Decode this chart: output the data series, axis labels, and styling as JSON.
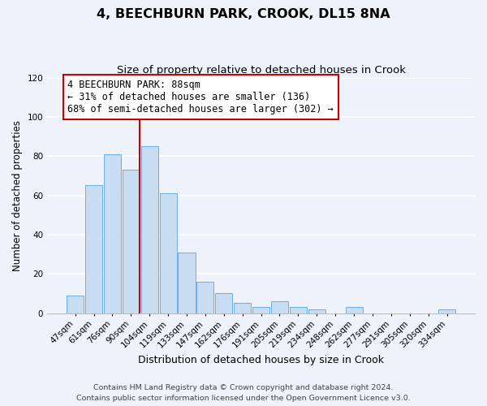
{
  "title": "4, BEECHBURN PARK, CROOK, DL15 8NA",
  "subtitle": "Size of property relative to detached houses in Crook",
  "xlabel": "Distribution of detached houses by size in Crook",
  "ylabel": "Number of detached properties",
  "bin_labels": [
    "47sqm",
    "61sqm",
    "76sqm",
    "90sqm",
    "104sqm",
    "119sqm",
    "133sqm",
    "147sqm",
    "162sqm",
    "176sqm",
    "191sqm",
    "205sqm",
    "219sqm",
    "234sqm",
    "248sqm",
    "262sqm",
    "277sqm",
    "291sqm",
    "305sqm",
    "320sqm",
    "334sqm"
  ],
  "bin_values": [
    9,
    65,
    81,
    73,
    85,
    61,
    31,
    16,
    10,
    5,
    3,
    6,
    3,
    2,
    0,
    3,
    0,
    0,
    0,
    0,
    2
  ],
  "bar_color": "#c9ddf2",
  "bar_edge_color": "#6aaee8",
  "vline_color": "#cc0000",
  "vline_x_index": 3,
  "annotation_text": "4 BEECHBURN PARK: 88sqm\n← 31% of detached houses are smaller (136)\n68% of semi-detached houses are larger (302) →",
  "annotation_box_facecolor": "white",
  "annotation_box_edgecolor": "#cc0000",
  "ylim": [
    0,
    120
  ],
  "yticks": [
    0,
    20,
    40,
    60,
    80,
    100,
    120
  ],
  "background_color": "#eef2fa",
  "grid_color": "white",
  "title_fontsize": 11.5,
  "subtitle_fontsize": 9.5,
  "xlabel_fontsize": 9,
  "ylabel_fontsize": 8.5,
  "tick_fontsize": 7.5,
  "annotation_fontsize": 8.5,
  "footer_fontsize": 6.8,
  "footer_line1": "Contains HM Land Registry data © Crown copyright and database right 2024.",
  "footer_line2": "Contains public sector information licensed under the Open Government Licence v3.0."
}
